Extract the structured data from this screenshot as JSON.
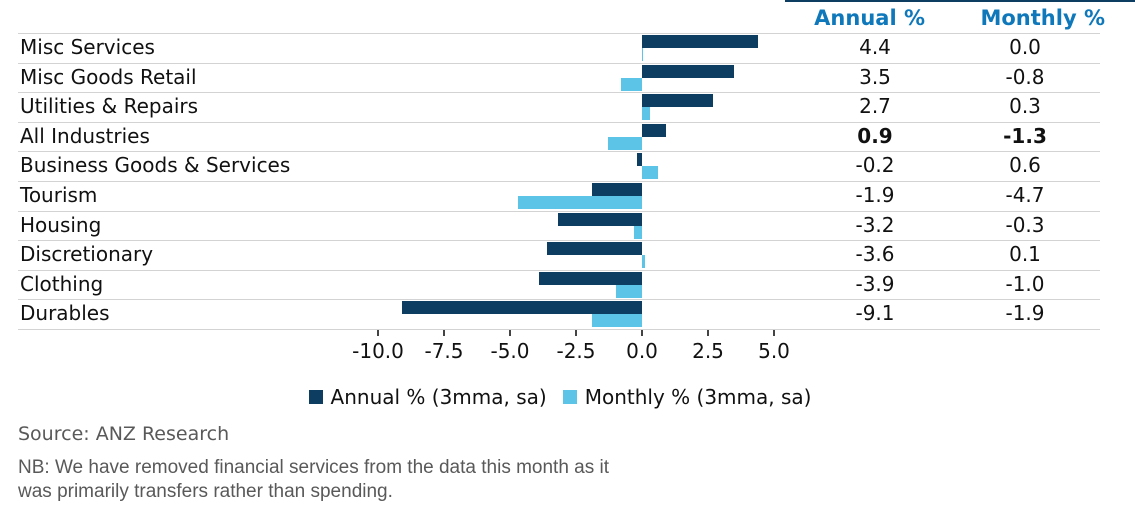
{
  "header": {
    "annual_label": "Annual %",
    "monthly_label": "Monthly %",
    "header_color": "#0e78ba"
  },
  "chart_data": {
    "type": "bar",
    "orientation": "horizontal",
    "categories": [
      "Misc Services",
      "Misc Goods Retail",
      "Utilities & Repairs",
      "All Industries",
      "Business Goods & Services",
      "Tourism",
      "Housing",
      "Discretionary",
      "Clothing",
      "Durables"
    ],
    "series": [
      {
        "name": "Annual % (3mma, sa)",
        "color": "#0d3d60",
        "values": [
          4.4,
          3.5,
          2.7,
          0.9,
          -0.2,
          -1.9,
          -3.2,
          -3.6,
          -3.9,
          -9.1
        ]
      },
      {
        "name": "Monthly % (3mma, sa)",
        "color": "#5bc4e7",
        "values": [
          0.0,
          -0.8,
          0.3,
          -1.3,
          0.6,
          -4.7,
          -0.3,
          0.1,
          -1.0,
          -1.9
        ]
      }
    ],
    "bold_row_index": 3,
    "x_ticks": [
      -10.0,
      -7.5,
      -5.0,
      -2.5,
      0.0,
      2.5,
      5.0
    ],
    "x_tick_labels": [
      "-10.0",
      "-7.5",
      "-5.0",
      "-2.5",
      "0.0",
      "2.5",
      "5.0"
    ],
    "xlim": [
      -10.0,
      5.0
    ],
    "grid": "horizontal-row-separators",
    "legend_position": "bottom-center",
    "value_columns": {
      "annual": "Annual %",
      "monthly": "Monthly %"
    },
    "gridline_color": "#d3d3d3"
  },
  "legend": [
    {
      "label": "Annual % (3mma, sa)",
      "color": "#0d3d60"
    },
    {
      "label": "Monthly % (3mma, sa)",
      "color": "#5bc4e7"
    }
  ],
  "source": "Source: ANZ Research",
  "note_lines": [
    "NB: We have removed financial services from the data this month as it",
    "was primarily transfers rather than spending."
  ]
}
